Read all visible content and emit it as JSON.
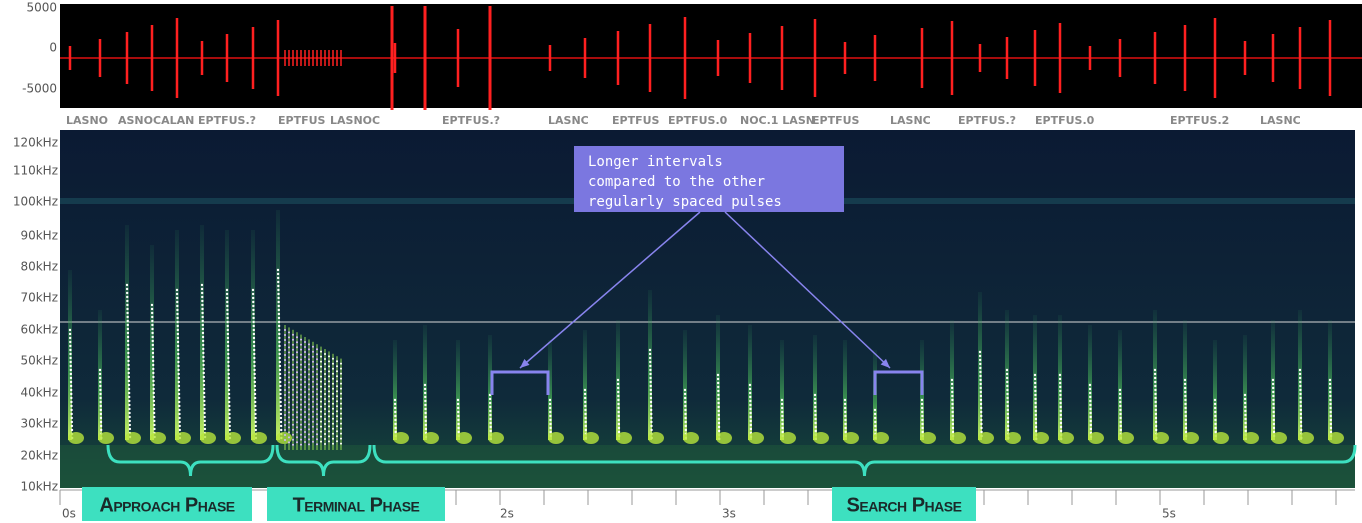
{
  "waveform": {
    "axis_labels": [
      "5000",
      "0",
      "-5000"
    ]
  },
  "detections": [
    "LASNO",
    "ASNOCALAN",
    "EPTFUS.?",
    "EPTFUS",
    "LASNOC",
    "EPTFUS.?",
    "LASNC",
    "EPTFUS",
    "EPTFUS.0",
    "NOC.1 LASN",
    "EPTFUS",
    "LASNC",
    "EPTFUS.?",
    "EPTFUS.0",
    "EPTFUS.2",
    "LASNC"
  ],
  "spectrogram": {
    "frequency_labels": [
      "120kHz",
      "110kHz",
      "100kHz",
      "90kHz",
      "80kHz",
      "70kHz",
      "60kHz",
      "50kHz",
      "40kHz",
      "30kHz",
      "20kHz",
      "10kHz"
    ]
  },
  "time_axis": {
    "labels": [
      "0s",
      "2s",
      "3s",
      "5s"
    ]
  },
  "annotation": {
    "lines": [
      "Longer intervals",
      "compared to the other",
      "regularly spaced pulses"
    ]
  },
  "phases": [
    "Approach Phase",
    "Terminal Phase",
    "Search Phase"
  ]
}
